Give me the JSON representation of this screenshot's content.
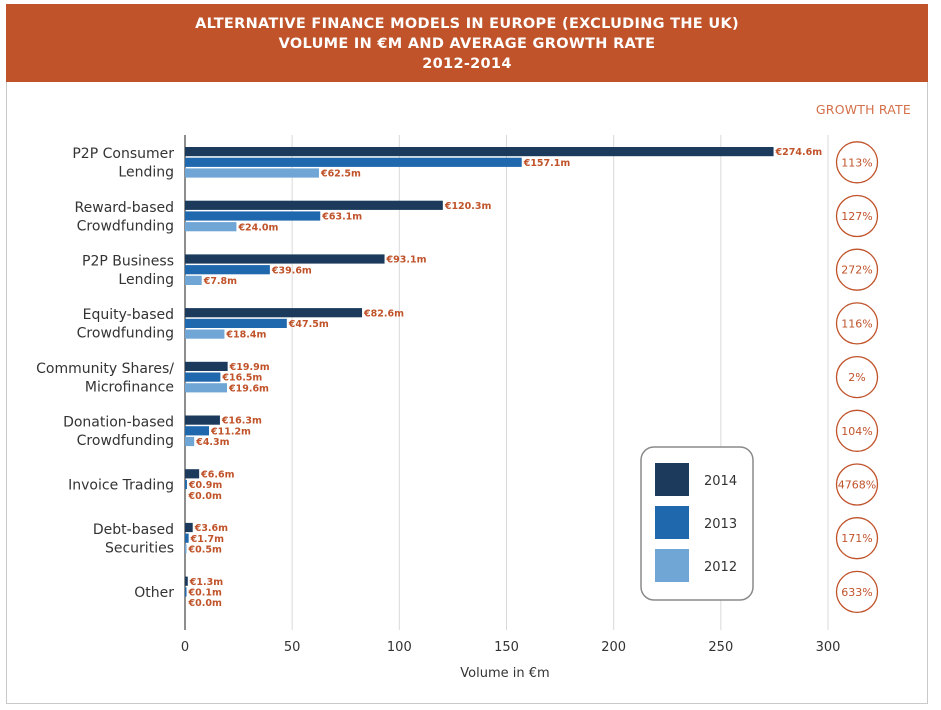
{
  "title": {
    "line1": "ALTERNATIVE FINANCE MODELS IN EUROPE (EXCLUDING THE UK)",
    "line2": "VOLUME IN €M AND AVERAGE GROWTH RATE",
    "line3": "2012-2014"
  },
  "growth_header": "GROWTH RATE",
  "colors": {
    "header": "#c0532a",
    "s2014": "#1b3a5c",
    "s2013": "#1f68ad",
    "s2012": "#6fa6d6",
    "accent": "#c0532a"
  },
  "chart_data": {
    "type": "bar",
    "orientation": "horizontal",
    "xlabel": "Volume in €m",
    "xlim": [
      0,
      300
    ],
    "xticks": [
      "0",
      "50",
      "100",
      "150",
      "200",
      "250",
      "300"
    ],
    "grid": "vertical",
    "legend_position": "bottom-right",
    "categories": [
      [
        "P2P Consumer",
        "Lending"
      ],
      [
        "Reward-based",
        "Crowdfunding"
      ],
      [
        "P2P Business",
        "Lending"
      ],
      [
        "Equity-based",
        "Crowdfunding"
      ],
      [
        "Community Shares/",
        "Microfinance"
      ],
      [
        "Donation-based",
        "Crowdfunding"
      ],
      [
        "Invoice Trading"
      ],
      [
        "Debt-based",
        "Securities"
      ],
      [
        "Other"
      ]
    ],
    "series": [
      {
        "name": "2014",
        "values": [
          274.6,
          120.3,
          93.1,
          82.6,
          19.9,
          16.3,
          6.6,
          3.6,
          1.3
        ],
        "labels": [
          "€274.6m",
          "€120.3m",
          "€93.1m",
          "€82.6m",
          "€19.9m",
          "€16.3m",
          "€6.6m",
          "€3.6m",
          "€1.3m"
        ]
      },
      {
        "name": "2013",
        "values": [
          157.1,
          63.1,
          39.6,
          47.5,
          16.5,
          11.2,
          0.9,
          1.7,
          0.1
        ],
        "labels": [
          "€157.1m",
          "€63.1m",
          "€39.6m",
          "€47.5m",
          "€16.5m",
          "€11.2m",
          "€0.9m",
          "€1.7m",
          "€0.1m"
        ]
      },
      {
        "name": "2012",
        "values": [
          62.5,
          24.0,
          7.8,
          18.4,
          19.6,
          4.3,
          0.0,
          0.5,
          0.0
        ],
        "labels": [
          "€62.5m",
          "€24.0m",
          "€7.8m",
          "€18.4m",
          "€19.6m",
          "€4.3m",
          "€0.0m",
          "€0.5m",
          "€0.0m"
        ]
      }
    ],
    "growth_rates": [
      "113%",
      "127%",
      "272%",
      "116%",
      "2%",
      "104%",
      "4768%",
      "171%",
      "633%"
    ]
  }
}
